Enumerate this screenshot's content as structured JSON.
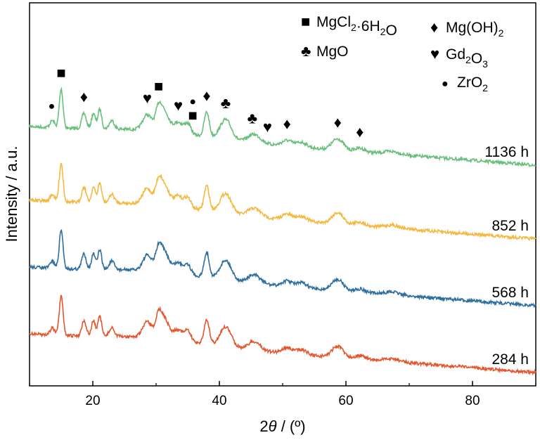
{
  "chart_data": {
    "type": "line",
    "xlabel_italic": "θ",
    "xlabel_prefix": "2",
    "xlabel_suffix": " / (º)",
    "ylabel": "Intensity / a.u.",
    "xlim": [
      10,
      90
    ],
    "xticks": [
      20,
      40,
      60,
      80
    ],
    "y_ticks_shown": false,
    "series": [
      {
        "name": "1136 h",
        "color": "#6abf7c",
        "offset": 3.0
      },
      {
        "name": "852 h",
        "color": "#f4b942",
        "offset": 2.0
      },
      {
        "name": "568 h",
        "color": "#2e6f9e",
        "offset": 1.0
      },
      {
        "name": "284 h",
        "color": "#e4572e",
        "offset": 0.0
      }
    ],
    "baseline_peaks": [
      {
        "x": 13.6,
        "h": 0.1,
        "w": 0.35
      },
      {
        "x": 15.0,
        "h": 0.55,
        "w": 0.3
      },
      {
        "x": 18.6,
        "h": 0.22,
        "w": 0.35
      },
      {
        "x": 20.1,
        "h": 0.22,
        "w": 0.3
      },
      {
        "x": 21.1,
        "h": 0.28,
        "w": 0.3
      },
      {
        "x": 23.0,
        "h": 0.12,
        "w": 0.4
      },
      {
        "x": 28.6,
        "h": 0.22,
        "w": 0.7
      },
      {
        "x": 30.4,
        "h": 0.3,
        "w": 0.5
      },
      {
        "x": 31.4,
        "h": 0.26,
        "w": 0.7
      },
      {
        "x": 33.5,
        "h": 0.15,
        "w": 0.7
      },
      {
        "x": 35.0,
        "h": 0.14,
        "w": 0.5
      },
      {
        "x": 38.0,
        "h": 0.35,
        "w": 0.4
      },
      {
        "x": 41.0,
        "h": 0.28,
        "w": 0.9
      },
      {
        "x": 45.5,
        "h": 0.12,
        "w": 1.0
      },
      {
        "x": 50.7,
        "h": 0.08,
        "w": 0.8
      },
      {
        "x": 53.0,
        "h": 0.07,
        "w": 0.8
      },
      {
        "x": 58.7,
        "h": 0.16,
        "w": 0.9
      },
      {
        "x": 62.2,
        "h": 0.05,
        "w": 0.8
      },
      {
        "x": 67.3,
        "h": 0.04,
        "w": 1.2
      }
    ],
    "legend": [
      {
        "symbol": "■",
        "phase": "MgCl",
        "sub1": "2",
        "mid": "·6H",
        "sub2": "2",
        "end": "O"
      },
      {
        "symbol": "♦",
        "phase": "Mg(OH)",
        "sub1": "2",
        "mid": "",
        "sub2": "",
        "end": ""
      },
      {
        "symbol": "♣",
        "phase": "MgO",
        "sub1": "",
        "mid": "",
        "sub2": "",
        "end": ""
      },
      {
        "symbol": "♥",
        "phase": "Gd",
        "sub1": "2",
        "mid": "O",
        "sub2": "3",
        "end": ""
      },
      {
        "symbol": "●",
        "phase": "ZrO",
        "sub1": "2",
        "mid": "",
        "sub2": "",
        "end": ""
      }
    ],
    "peak_markers": [
      {
        "symbol": "■",
        "x": 15.0
      },
      {
        "symbol": "■",
        "x": 30.4
      },
      {
        "symbol": "■",
        "x": 35.8
      },
      {
        "symbol": "♦",
        "x": 18.6
      },
      {
        "symbol": "♦",
        "x": 38.0
      },
      {
        "symbol": "♦",
        "x": 50.7
      },
      {
        "symbol": "♦",
        "x": 58.7
      },
      {
        "symbol": "♦",
        "x": 62.2
      },
      {
        "symbol": "♣",
        "x": 41.0
      },
      {
        "symbol": "♣",
        "x": 45.2
      },
      {
        "symbol": "♥",
        "x": 28.6
      },
      {
        "symbol": "♥",
        "x": 33.5
      },
      {
        "symbol": "♥",
        "x": 47.6
      },
      {
        "symbol": "●",
        "x": 13.5
      },
      {
        "symbol": "●",
        "x": 35.8
      }
    ]
  }
}
